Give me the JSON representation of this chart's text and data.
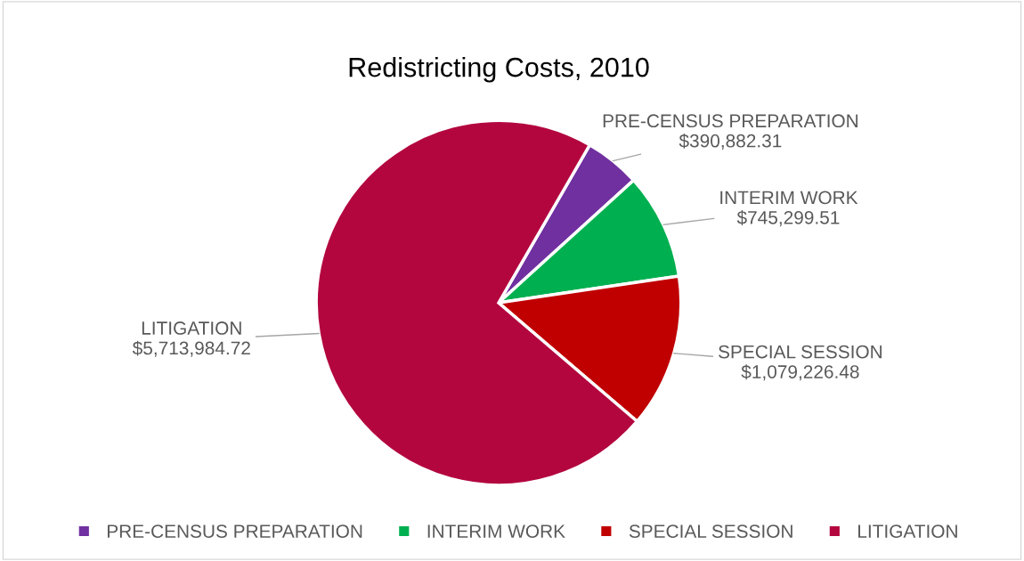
{
  "chart_data": {
    "type": "pie",
    "title": "Redistricting Costs, 2010",
    "categories": [
      "PRE-CENSUS PREPARATION",
      "INTERIM WORK",
      "SPECIAL SESSION",
      "LITIGATION"
    ],
    "values": [
      390882.31,
      745299.51,
      1079226.48,
      5713984.72
    ],
    "value_labels": [
      "$390,882.31",
      "$745,299.51",
      "$1,079,226.48",
      "$5,713,984.72"
    ],
    "colors": [
      "#7030a0",
      "#00b050",
      "#c00000",
      "#b3063f"
    ],
    "legend": "bottom"
  }
}
